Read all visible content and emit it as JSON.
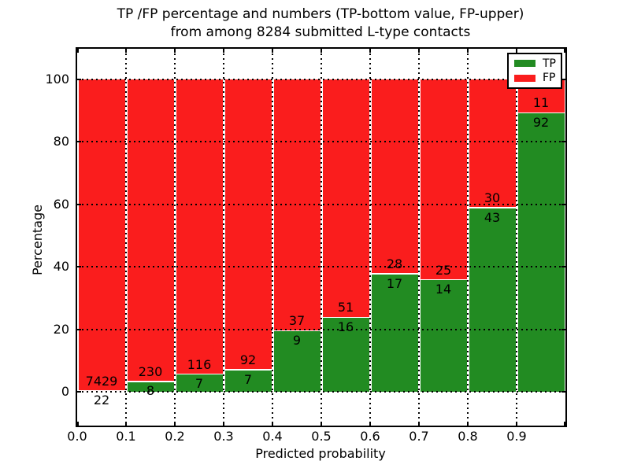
{
  "chart_data": {
    "type": "bar",
    "stacked": true,
    "normalized": "percent",
    "title": "TP /FP percentage and numbers (TP-bottom value, FP-upper) from among 8284 submitted L-type contacts",
    "title_line1": "TP /FP percentage and numbers (TP-bottom value, FP-upper)",
    "title_line2": "from among 8284 submitted L-type contacts",
    "xlabel": "Predicted probability",
    "ylabel": "Percentage",
    "total_contacts": 8284,
    "xlim": [
      0.0,
      1.0
    ],
    "ylim": [
      -10.8,
      109.8
    ],
    "x_tick_labels": [
      "0.0",
      "0.1",
      "0.2",
      "0.3",
      "0.4",
      "0.5",
      "0.6",
      "0.7",
      "0.8",
      "0.9"
    ],
    "y_ticks": [
      0,
      20,
      40,
      60,
      80,
      100
    ],
    "grid": "dotted",
    "bin_edges": [
      0.0,
      0.1,
      0.2,
      0.3,
      0.4,
      0.5,
      0.6,
      0.7,
      0.8,
      0.9,
      1.0
    ],
    "categories": [
      "0.0-0.1",
      "0.1-0.2",
      "0.2-0.3",
      "0.3-0.4",
      "0.4-0.5",
      "0.5-0.6",
      "0.6-0.7",
      "0.7-0.8",
      "0.8-0.9",
      "0.9-1.0"
    ],
    "series": [
      {
        "name": "TP",
        "color": "#228b22",
        "counts": [
          22,
          8,
          7,
          7,
          9,
          16,
          17,
          14,
          43,
          92
        ]
      },
      {
        "name": "FP",
        "color": "#fa1d1d",
        "counts": [
          7429,
          230,
          116,
          92,
          37,
          51,
          28,
          25,
          30,
          11
        ]
      }
    ],
    "legend": {
      "position": "upper right",
      "entries": [
        {
          "label": "TP",
          "color": "#228b22"
        },
        {
          "label": "FP",
          "color": "#fa1d1d"
        }
      ]
    }
  }
}
